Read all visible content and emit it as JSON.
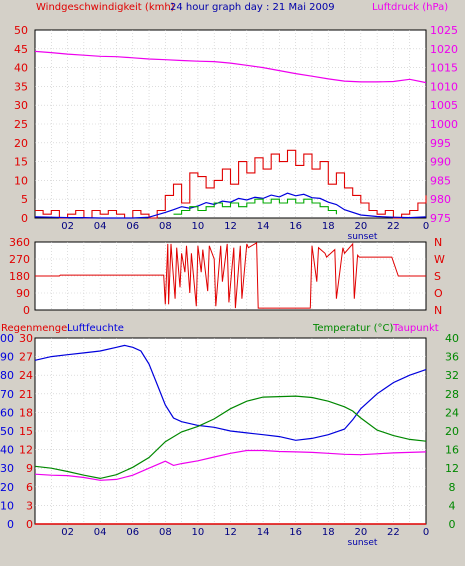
{
  "colors": {
    "background": "#d4d0c8",
    "plot_background": "#ffffff",
    "wind_speed": "#e00000",
    "wind_gust": "#e00000",
    "wind_avg": "#0000dd",
    "wind_green": "#00aa00",
    "pressure": "#ee00ee",
    "wind_direction": "#e00000",
    "rain": "#e00000",
    "humidity": "#0000dd",
    "temperature": "#008800",
    "dewpoint": "#ee00ee",
    "sunset_label": "#0000aa"
  },
  "chart_data": [
    {
      "type": "line",
      "title": "24 hour graph day : 21 Mai 2009",
      "ylabel_left": "Windgeschwindigkeit (kmh)",
      "ylabel_right": "Luftdruck (hPa)",
      "ylim_left": [
        0,
        50
      ],
      "ylim_right": [
        975,
        1025
      ],
      "yticks_left": [
        "0",
        "5",
        "10",
        "15",
        "20",
        "25",
        "30",
        "35",
        "40",
        "45",
        "50"
      ],
      "yticks_right": [
        "975",
        "980",
        "985",
        "990",
        "995",
        "1000",
        "1005",
        "1010",
        "1015",
        "1020",
        "1025"
      ],
      "xticks": [
        "02",
        "04",
        "06",
        "08",
        "10",
        "12",
        "14",
        "16",
        "18",
        "20",
        "22",
        "0"
      ],
      "annotation": "sunset",
      "series": [
        {
          "key": "pressure",
          "axis": "right",
          "x": [
            0,
            1,
            2,
            3,
            4,
            5,
            6,
            7,
            8,
            9,
            10,
            11,
            12,
            13,
            14,
            15,
            16,
            17,
            18,
            19,
            20,
            21,
            22,
            23,
            24
          ],
          "values": [
            1019.3,
            1019.0,
            1018.6,
            1018.3,
            1018.0,
            1017.9,
            1017.6,
            1017.3,
            1017.1,
            1016.9,
            1016.7,
            1016.6,
            1016.2,
            1015.6,
            1015.0,
            1014.2,
            1013.4,
            1012.7,
            1012.0,
            1011.4,
            1011.2,
            1011.2,
            1011.3,
            1011.9,
            1011.0
          ]
        },
        {
          "key": "gust",
          "axis": "left",
          "x": [
            0,
            0.5,
            1,
            1.5,
            2,
            2.5,
            3,
            3.5,
            4,
            4.5,
            5,
            5.5,
            6,
            6.5,
            7,
            7.5,
            8,
            8.5,
            9,
            9.5,
            10,
            10.5,
            11,
            11.5,
            12,
            12.5,
            13,
            13.5,
            14,
            14.5,
            15,
            15.5,
            16,
            16.5,
            17,
            17.5,
            18,
            18.5,
            19,
            19.5,
            20,
            20.5,
            21,
            21.5,
            22,
            22.5,
            23,
            23.5,
            24
          ],
          "values": [
            2,
            1,
            2,
            0,
            1,
            2,
            0,
            2,
            1,
            2,
            1,
            0,
            2,
            1,
            0,
            2,
            6,
            9,
            4,
            12,
            11,
            8,
            10,
            13,
            9,
            15,
            12,
            16,
            13,
            17,
            15,
            18,
            14,
            17,
            13,
            15,
            9,
            12,
            8,
            6,
            4,
            2,
            1,
            2,
            0,
            1,
            2,
            4,
            6
          ]
        },
        {
          "key": "average",
          "axis": "left",
          "x": [
            0,
            1,
            2,
            3,
            4,
            5,
            6,
            7,
            8,
            8.5,
            9,
            9.5,
            10,
            10.5,
            11,
            11.5,
            12,
            12.5,
            13,
            13.5,
            14,
            14.5,
            15,
            15.5,
            16,
            16.5,
            17,
            17.5,
            18,
            18.5,
            19,
            20,
            21,
            22,
            23,
            24
          ],
          "values": [
            0.3,
            0.2,
            0.1,
            0.1,
            0,
            0,
            0,
            0.2,
            1.5,
            2.2,
            3.0,
            2.6,
            3.2,
            4.1,
            3.6,
            4.5,
            4.2,
            5.2,
            4.8,
            5.5,
            5.2,
            6.1,
            5.6,
            6.6,
            5.9,
            6.3,
            5.4,
            5.2,
            4.2,
            3.6,
            2.2,
            0.8,
            0.4,
            0.2,
            0.1,
            0.3
          ]
        },
        {
          "key": "green",
          "axis": "left",
          "x": [
            8.5,
            9,
            9.5,
            10,
            10.5,
            11,
            11.5,
            12,
            12.5,
            13,
            13.5,
            14,
            14.5,
            15,
            15.5,
            16,
            16.5,
            17,
            17.5,
            18,
            18.5
          ],
          "values": [
            1,
            2,
            3,
            2,
            3,
            4,
            3,
            4,
            3,
            4,
            5,
            4,
            5,
            4,
            5,
            4,
            5,
            4,
            3,
            2,
            1
          ]
        }
      ]
    },
    {
      "type": "line",
      "ylim": [
        0,
        360
      ],
      "yticks_left": [
        "0",
        "90",
        "180",
        "270",
        "360"
      ],
      "yticks_right": [
        "N",
        "O",
        "S",
        "W",
        "N"
      ],
      "series": [
        {
          "key": "direction",
          "x": [
            0,
            1.5,
            1.55,
            7.9,
            8.0,
            8.15,
            8.2,
            8.35,
            8.4,
            8.6,
            8.7,
            8.9,
            9.0,
            9.2,
            9.3,
            9.5,
            9.6,
            9.9,
            10.0,
            10.2,
            10.3,
            10.6,
            10.7,
            11.0,
            11.1,
            11.4,
            11.5,
            11.8,
            11.9,
            12.2,
            12.3,
            12.6,
            12.7,
            13.0,
            13.1,
            13.6,
            13.7,
            16.9,
            17.0,
            17.3,
            17.4,
            17.8,
            17.9,
            18.4,
            18.5,
            18.9,
            19.0,
            19.5,
            19.6,
            19.8,
            19.9,
            21.9,
            22.3,
            24
          ],
          "values": [
            180,
            180,
            185,
            185,
            30,
            350,
            30,
            350,
            280,
            60,
            330,
            120,
            300,
            200,
            340,
            90,
            300,
            20,
            340,
            200,
            320,
            100,
            340,
            270,
            20,
            340,
            150,
            350,
            40,
            330,
            10,
            340,
            60,
            350,
            330,
            355,
            10,
            10,
            340,
            150,
            330,
            300,
            280,
            320,
            60,
            330,
            300,
            350,
            60,
            290,
            280,
            280,
            180,
            180
          ]
        }
      ]
    },
    {
      "type": "line",
      "ylabel_left_1": "Regenmenge",
      "ylabel_left_2": "Luftfeuchte",
      "ylabel_right_1": "Temperatur (°C)",
      "ylabel_right_2": "Taupunkt",
      "yticks_rain": [
        "0",
        "3",
        "6",
        "9",
        "12",
        "15",
        "18",
        "21",
        "24",
        "27",
        "30"
      ],
      "yticks_humidity": [
        "0",
        "10",
        "20",
        "30",
        "40",
        "50",
        "60",
        "70",
        "80",
        "90",
        "100"
      ],
      "yticks_temp": [
        "0",
        "4",
        "8",
        "12",
        "16",
        "20",
        "24",
        "28",
        "32",
        "36",
        "40"
      ],
      "ylim_humidity": [
        0,
        100
      ],
      "ylim_temp": [
        0,
        40
      ],
      "ylim_rain": [
        0,
        30
      ],
      "xticks": [
        "02",
        "04",
        "06",
        "08",
        "10",
        "12",
        "14",
        "16",
        "18",
        "20",
        "22",
        "0"
      ],
      "annotation": "sunset",
      "series": [
        {
          "key": "humidity",
          "axis": "humidity",
          "x": [
            0,
            1,
            2,
            3,
            4,
            5,
            5.5,
            6,
            6.5,
            7,
            7.5,
            8,
            8.5,
            9,
            9.5,
            10,
            11,
            12,
            13,
            14,
            15,
            16,
            17,
            18,
            19,
            19.5,
            20,
            21,
            22,
            23,
            24
          ],
          "values": [
            88,
            90,
            91,
            92,
            93,
            95,
            96,
            95,
            93,
            86,
            75,
            64,
            57,
            55,
            54,
            53,
            52,
            50,
            49,
            48,
            47,
            45,
            46,
            48,
            51,
            56,
            62,
            70,
            76,
            80,
            83
          ]
        },
        {
          "key": "temperature",
          "axis": "temp",
          "x": [
            0,
            1,
            2,
            3,
            4,
            5,
            6,
            7,
            8,
            9,
            10,
            11,
            12,
            13,
            14,
            15,
            16,
            17,
            18,
            19,
            19.5,
            20,
            21,
            22,
            23,
            24
          ],
          "values": [
            12.4,
            12.0,
            11.3,
            10.5,
            9.8,
            10.6,
            12.2,
            14.3,
            17.7,
            19.8,
            21.0,
            22.6,
            24.8,
            26.4,
            27.3,
            27.4,
            27.5,
            27.2,
            26.4,
            25.2,
            24.3,
            22.8,
            20.2,
            19.0,
            18.2,
            17.8
          ]
        },
        {
          "key": "dewpoint",
          "axis": "temp",
          "x": [
            0,
            1,
            2,
            3,
            4,
            5,
            6,
            7,
            8,
            8.5,
            9,
            10,
            11,
            12,
            13,
            14,
            15,
            16,
            17,
            18,
            19,
            20,
            21,
            22,
            23,
            24
          ],
          "values": [
            10.7,
            10.5,
            10.4,
            10.0,
            9.4,
            9.6,
            10.5,
            12.0,
            13.5,
            12.6,
            13.0,
            13.6,
            14.4,
            15.2,
            15.8,
            15.8,
            15.6,
            15.5,
            15.4,
            15.2,
            15.0,
            14.9,
            15.1,
            15.3,
            15.4,
            15.5
          ]
        },
        {
          "key": "rain",
          "axis": "rain",
          "x": [
            0,
            24
          ],
          "values": [
            0,
            0
          ]
        }
      ]
    }
  ]
}
